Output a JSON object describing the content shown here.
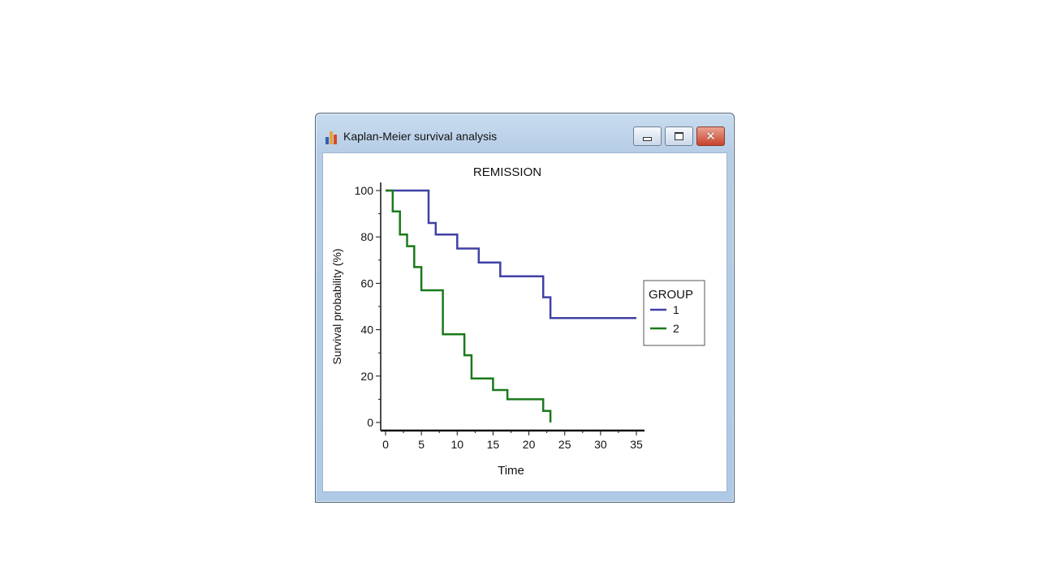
{
  "window": {
    "title": "Kaplan-Meier survival analysis",
    "icon": "bar-chart-icon",
    "controls": {
      "minimize": "minimize-icon",
      "maximize": "maximize-icon",
      "close": "close-icon",
      "close_glyph": "✕"
    }
  },
  "colors": {
    "group1": "#4040a6",
    "group2": "#1a7a1a",
    "axis": "#111111"
  },
  "chart_data": {
    "type": "line",
    "title": "REMISSION",
    "xlabel": "Time",
    "ylabel": "Survival probability (%)",
    "xlim": [
      0,
      35
    ],
    "ylim": [
      0,
      100
    ],
    "xticks": [
      0,
      5,
      10,
      15,
      20,
      25,
      30,
      35
    ],
    "yticks": [
      0,
      20,
      40,
      60,
      80,
      100
    ],
    "grid": false,
    "legend": {
      "title": "GROUP",
      "position": "right"
    },
    "series": [
      {
        "name": "1",
        "x": [
          0,
          6,
          6,
          7,
          7,
          10,
          10,
          13,
          13,
          16,
          16,
          22,
          22,
          23,
          23,
          35
        ],
        "y": [
          100,
          100,
          86,
          86,
          81,
          81,
          75,
          75,
          69,
          69,
          63,
          63,
          54,
          54,
          45,
          45
        ]
      },
      {
        "name": "2",
        "x": [
          0,
          1,
          1,
          2,
          2,
          3,
          3,
          4,
          4,
          5,
          5,
          8,
          8,
          11,
          11,
          12,
          12,
          15,
          15,
          17,
          17,
          22,
          22,
          23,
          23
        ],
        "y": [
          100,
          100,
          91,
          91,
          81,
          81,
          76,
          76,
          67,
          67,
          57,
          57,
          38,
          38,
          29,
          29,
          19,
          19,
          14,
          14,
          10,
          10,
          5,
          5,
          0
        ]
      }
    ]
  }
}
